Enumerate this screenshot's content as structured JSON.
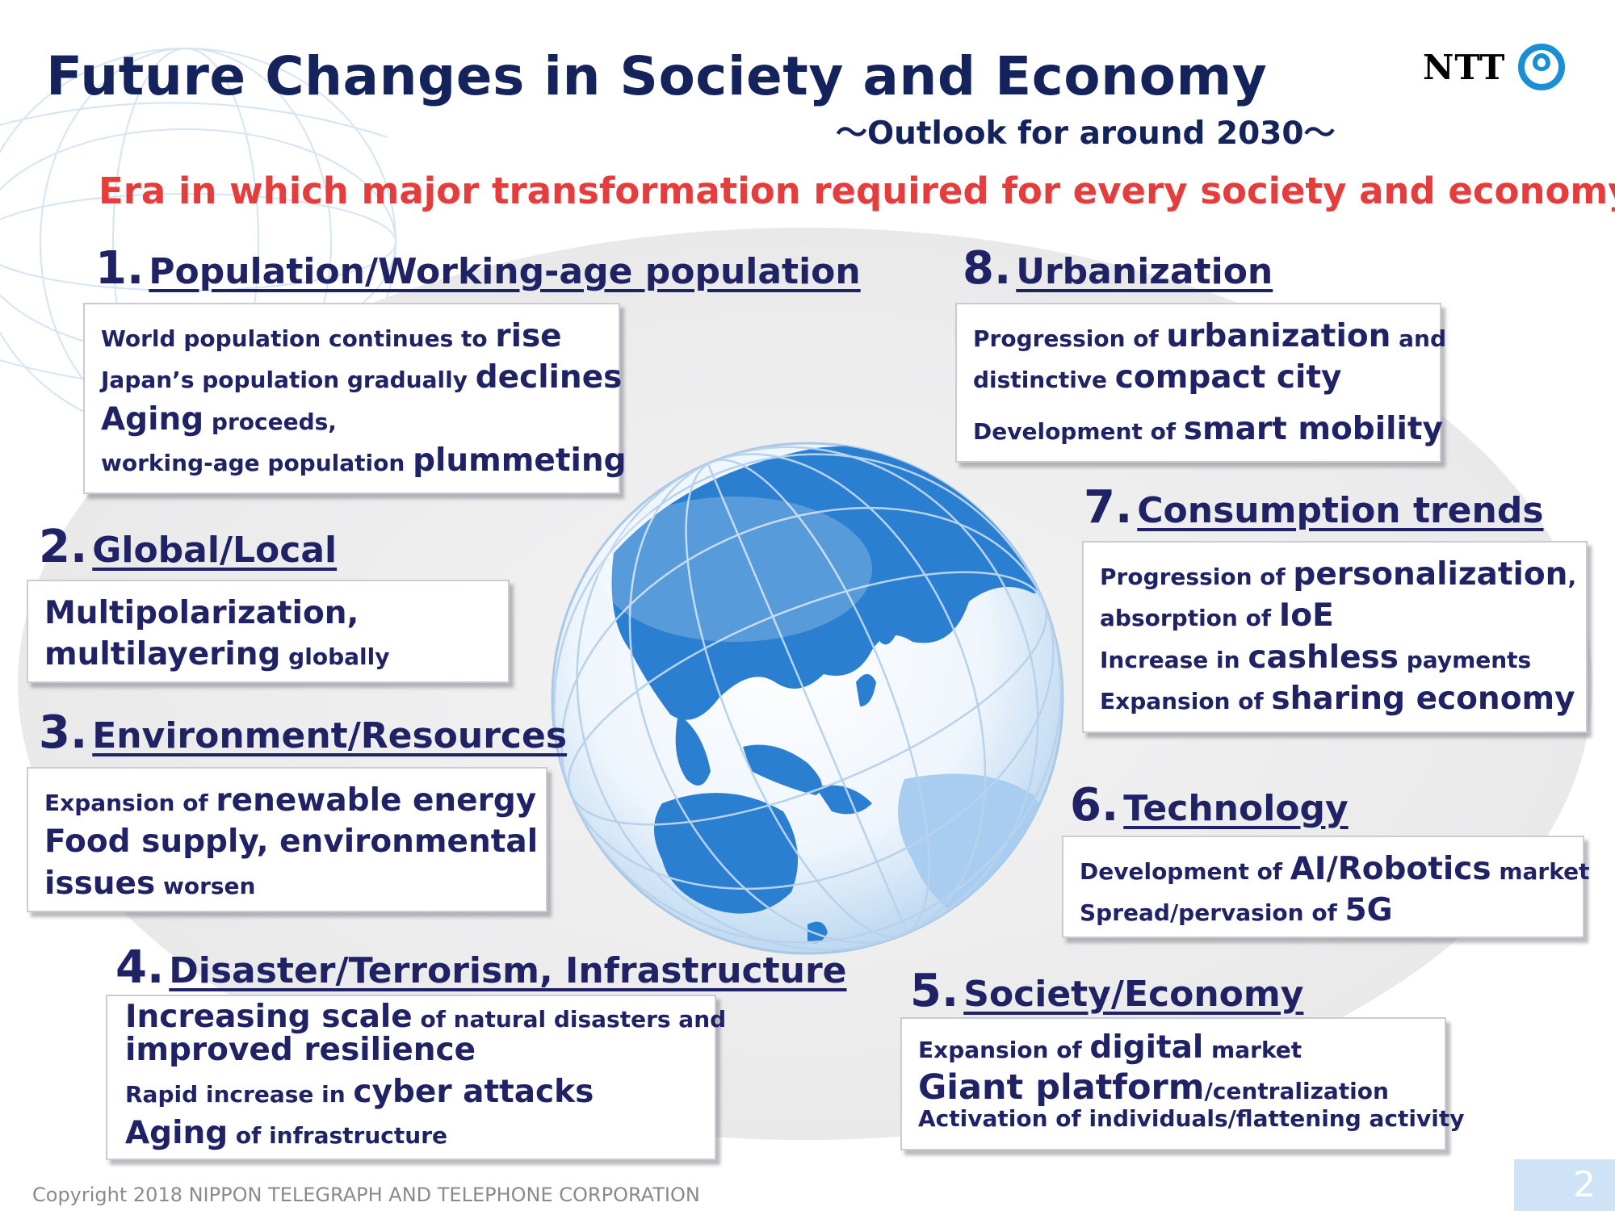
{
  "header": {
    "title": "Future Changes in Society and Economy",
    "subtitle": "～Outlook for around 2030～",
    "era": "Era in which major transformation required for every society and economy",
    "logo_text": "NTT"
  },
  "colors": {
    "navy": "#1f2366",
    "accent_red": "#e63c3c",
    "globe_blue": "#2a7fd0"
  },
  "icons": {
    "logo_mark": "ntt-ring-logo-icon",
    "globe": "globe-icon"
  },
  "sections": {
    "s1": {
      "num": "1.",
      "title": "Population/Working-age population",
      "l1": {
        "a": "World population continues to ",
        "b": "rise"
      },
      "l2": {
        "a": "Japan’s population gradually ",
        "b": "declines"
      },
      "l3": {
        "a": "Aging",
        "b": " proceeds,"
      },
      "l4": {
        "a": "working-age population ",
        "b": "plummeting"
      }
    },
    "s2": {
      "num": "2.",
      "title": "Global/Local",
      "l1": {
        "a": "Multipolarization,"
      },
      "l2": {
        "a": "multilayering",
        "b": " globally"
      }
    },
    "s3": {
      "num": "3.",
      "title": "Environment/Resources",
      "l1": {
        "a": "Expansion of ",
        "b": "renewable energy"
      },
      "l2": {
        "a": "Food supply, environmental"
      },
      "l3": {
        "a": "issues",
        "b": " worsen"
      }
    },
    "s4": {
      "num": "4.",
      "title": "Disaster/Terrorism, Infrastructure",
      "l1": {
        "a": "Increasing scale",
        "b": " of natural disasters and"
      },
      "l2": {
        "a": "improved resilience"
      },
      "l3": {
        "a": "Rapid increase in ",
        "b": "cyber attacks"
      },
      "l4": {
        "a": "Aging",
        "b": " of infrastructure"
      }
    },
    "s5": {
      "num": "5.",
      "title": "Society/Economy",
      "l1": {
        "a": "Expansion of ",
        "b": "digital",
        "c": " market"
      },
      "l2": {
        "a": "Giant platform",
        "b": "/centralization"
      },
      "l3": {
        "a": "Activation of individuals/flattening activity"
      }
    },
    "s6": {
      "num": "6.",
      "title": "Technology",
      "l1": {
        "a": "Development of ",
        "b": "AI/Robotics",
        "c": " market"
      },
      "l2": {
        "a": "Spread/pervasion of ",
        "b": "5G"
      }
    },
    "s7": {
      "num": "7.",
      "title": "Consumption trends",
      "l1": {
        "a": "Progression of ",
        "b": "personalization",
        "c": ","
      },
      "l2": {
        "a": "absorption of ",
        "b": "IoE"
      },
      "l3": {
        "a": "Increase in ",
        "b": "cashless",
        "c": " payments"
      },
      "l4": {
        "a": "Expansion of ",
        "b": "sharing economy"
      }
    },
    "s8": {
      "num": "8.",
      "title": "Urbanization",
      "l1": {
        "a": "Progression of ",
        "b": "urbanization",
        "c": " and"
      },
      "l2": {
        "a": "distinctive ",
        "b": "compact city"
      },
      "l3": {
        "a": "Development of ",
        "b": "smart mobility"
      }
    }
  },
  "footer": {
    "copyright": "Copyright 2018 NIPPON TELEGRAPH AND TELEPHONE CORPORATION",
    "page_number": "2"
  }
}
